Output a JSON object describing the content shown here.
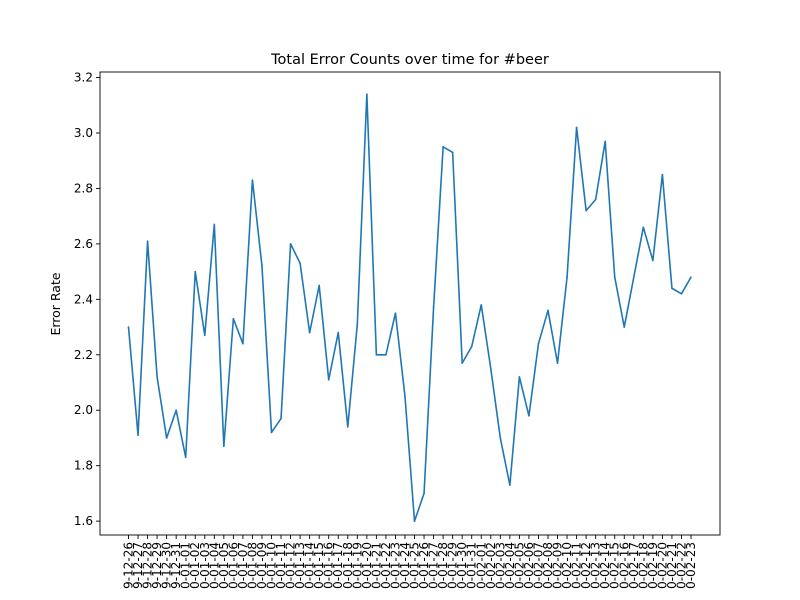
{
  "chart_data": {
    "type": "line",
    "title": "Total Error Counts over time for #beer",
    "xlabel": "",
    "ylabel": "Error Rate",
    "ylim": [
      1.55,
      3.22
    ],
    "y_ticks": [
      1.6,
      1.8,
      2.0,
      2.2,
      2.4,
      2.6,
      2.8,
      3.0,
      3.2
    ],
    "grid": false,
    "x": [
      "9-12-26",
      "9-12-27",
      "9-12-28",
      "9-12-29",
      "9-12-30",
      "9-12-31",
      "0-01-01",
      "0-01-02",
      "0-01-03",
      "0-01-04",
      "0-01-05",
      "0-01-06",
      "0-01-07",
      "0-01-08",
      "0-01-09",
      "0-01-10",
      "0-01-11",
      "0-01-12",
      "0-01-13",
      "0-01-14",
      "0-01-15",
      "0-01-16",
      "0-01-17",
      "0-01-18",
      "0-01-19",
      "0-01-20",
      "0-01-21",
      "0-01-22",
      "0-01-23",
      "0-01-24",
      "0-01-25",
      "0-01-26",
      "0-01-27",
      "0-01-28",
      "0-01-29",
      "0-01-30",
      "0-01-31",
      "0-02-01",
      "0-02-02",
      "0-02-03",
      "0-02-04",
      "0-02-05",
      "0-02-06",
      "0-02-07",
      "0-02-08",
      "0-02-09",
      "0-02-10",
      "0-02-11",
      "0-02-12",
      "0-02-13",
      "0-02-14",
      "0-02-15",
      "0-02-16",
      "0-02-17",
      "0-02-18",
      "0-02-19",
      "0-02-20",
      "0-02-21",
      "0-02-22",
      "0-02-23"
    ],
    "series": [
      {
        "color": "#1f77b4",
        "values": [
          2.3,
          1.91,
          2.61,
          2.12,
          1.9,
          2.0,
          1.83,
          2.5,
          2.27,
          2.67,
          1.87,
          2.33,
          2.24,
          2.83,
          2.52,
          1.92,
          1.97,
          2.6,
          2.53,
          2.28,
          2.45,
          2.11,
          2.28,
          1.94,
          2.31,
          3.14,
          2.2,
          2.2,
          2.35,
          2.05,
          1.6,
          1.7,
          2.37,
          2.95,
          2.93,
          2.17,
          2.23,
          2.38,
          2.15,
          1.9,
          1.73,
          2.12,
          1.98,
          2.24,
          2.36,
          2.17,
          2.48,
          3.02,
          2.72,
          2.76,
          2.97,
          2.48,
          2.3,
          2.48,
          2.66,
          2.54,
          2.85,
          2.44,
          2.42,
          2.48
        ]
      }
    ]
  }
}
